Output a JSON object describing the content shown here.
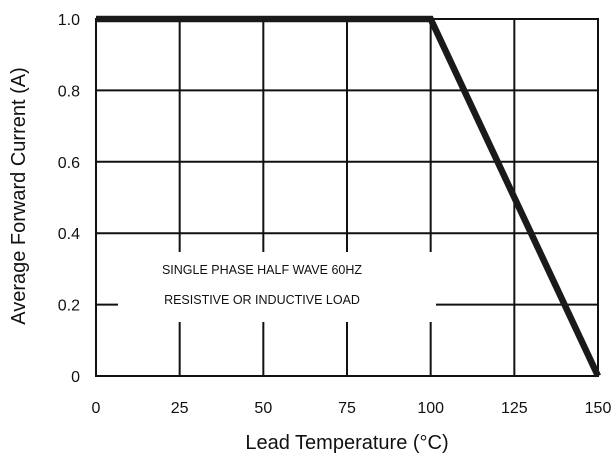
{
  "colors": {
    "line": "#1a1a1a",
    "grid": "#111111",
    "background": "#ffffff"
  },
  "chart_data": {
    "type": "line",
    "title": "",
    "xlabel": "Lead Temperature (°C)",
    "ylabel": "Average Forward Current (A)",
    "xlim": [
      0,
      150
    ],
    "ylim": [
      0,
      1.0
    ],
    "x_ticks": [
      0,
      25,
      50,
      75,
      100,
      125,
      150
    ],
    "x_tick_labels": [
      "0",
      "25",
      "50",
      "75",
      "100",
      "125",
      "150"
    ],
    "y_ticks": [
      0,
      0.2,
      0.4,
      0.6,
      0.8,
      1.0
    ],
    "y_tick_labels": [
      "0",
      "0.2",
      "0.4",
      "0.6",
      "0.8",
      "1.0"
    ],
    "grid": true,
    "legend": "none",
    "series": [
      {
        "x": [
          0,
          100,
          150
        ],
        "y": [
          1.0,
          1.0,
          0
        ]
      }
    ],
    "annotations": [
      "SINGLE PHASE HALF WAVE 60HZ",
      "RESISTIVE OR  INDUCTIVE LOAD"
    ]
  }
}
